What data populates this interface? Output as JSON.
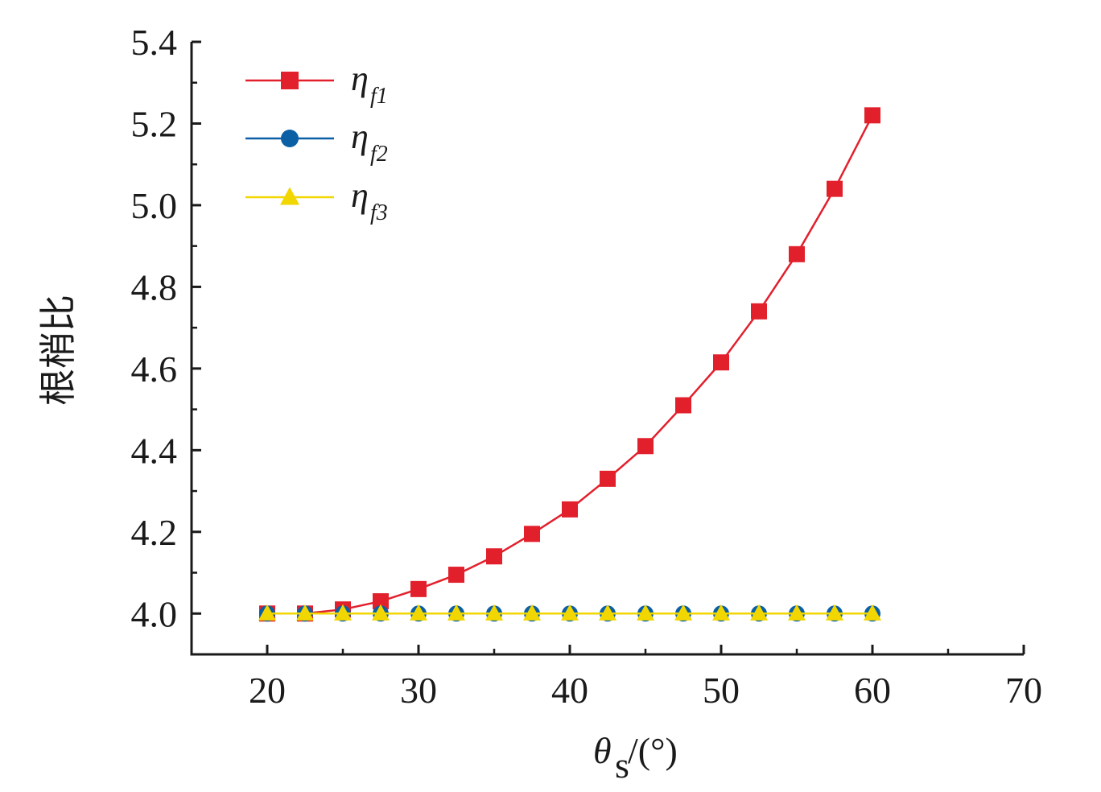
{
  "chart_data": {
    "type": "line",
    "x": [
      20,
      22.5,
      25,
      27.5,
      30,
      32.5,
      35,
      37.5,
      40,
      42.5,
      45,
      47.5,
      50,
      52.5,
      55,
      57.5,
      60
    ],
    "series": [
      {
        "name_main": "η",
        "name_sub": "f1",
        "color": "#e2202c",
        "marker": "square",
        "values": [
          4.0,
          4.0,
          4.01,
          4.03,
          4.06,
          4.095,
          4.14,
          4.195,
          4.255,
          4.33,
          4.41,
          4.51,
          4.615,
          4.74,
          4.88,
          5.04,
          5.22
        ]
      },
      {
        "name_main": "η",
        "name_sub": "f2",
        "color": "#0a5fa5",
        "marker": "circle",
        "values": [
          4.0,
          4.0,
          4.0,
          4.0,
          4.0,
          4.0,
          4.0,
          4.0,
          4.0,
          4.0,
          4.0,
          4.0,
          4.0,
          4.0,
          4.0,
          4.0,
          4.0
        ]
      },
      {
        "name_main": "η",
        "name_sub": "f3",
        "color": "#f2d600",
        "marker": "triangle",
        "values": [
          4.0,
          4.0,
          4.0,
          4.0,
          4.0,
          4.0,
          4.0,
          4.0,
          4.0,
          4.0,
          4.0,
          4.0,
          4.0,
          4.0,
          4.0,
          4.0,
          4.0
        ]
      }
    ],
    "xlim": [
      15,
      70
    ],
    "ylim": [
      3.9,
      5.4
    ],
    "xticks": [
      20,
      30,
      40,
      50,
      60,
      70
    ],
    "yticks": [
      4.0,
      4.2,
      4.4,
      4.6,
      4.8,
      5.0,
      5.2,
      5.4
    ],
    "xlabel_main": "θ",
    "xlabel_sub": "s",
    "xlabel_unit": "/(°)",
    "ylabel": "根梢比",
    "legend_position": "top-left",
    "grid": false
  }
}
